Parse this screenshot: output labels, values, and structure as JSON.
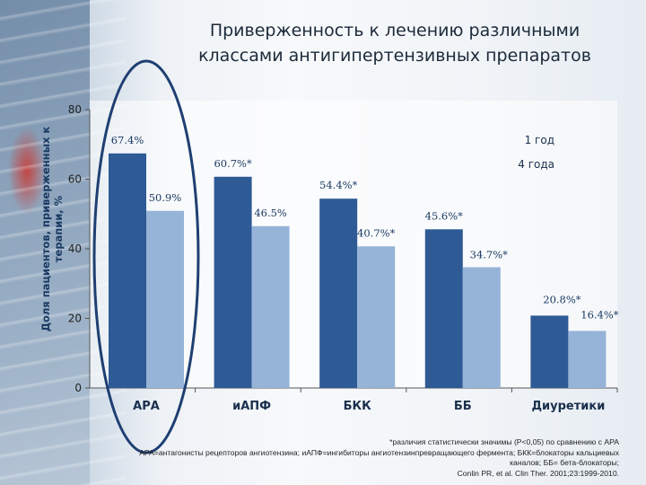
{
  "title_lines": [
    "Приверженность к лечению различными",
    "классами антигипертензивных препаратов"
  ],
  "footnote_lines": [
    "*различия статистически значимы (P<0,05) по сравнению с АРА",
    "АРА=антагонисты рецепторов ангиотензина; иАПФ=ингибиторы ангиотензинпревращающего фермента; БКК=блокаторы кальциевых",
    "каналов; ББ= бета-блокаторы;",
    "Conlin PR, et al. Clin Ther. 2001;23:1999-2010."
  ],
  "colors": {
    "series1": "#2e5a96",
    "series2": "#96b3d8",
    "highlight_oval": "#1f3f72"
  },
  "chart_data": {
    "type": "bar",
    "categories": [
      "АРА",
      "иАПФ",
      "БКК",
      "ББ",
      "Диуретики"
    ],
    "series": [
      {
        "name": "1 год",
        "values": [
          67.4,
          60.7,
          54.4,
          45.6,
          20.8
        ],
        "labels": [
          "67.4%",
          "60.7%*",
          "54.4%*",
          "45.6%*",
          "20.8%*"
        ]
      },
      {
        "name": "4 года",
        "values": [
          50.9,
          46.5,
          40.7,
          34.7,
          16.4
        ],
        "labels": [
          "50.9%",
          "46.5%",
          "40.7%*",
          "34.7%*",
          "16.4%*"
        ]
      }
    ],
    "ylabel": "Доля пациентов, приверженных к терапии, %",
    "ylim": [
      0,
      80
    ],
    "yticks": [
      0,
      20,
      40,
      60,
      80
    ],
    "grid": false,
    "legend_position": "top-right",
    "highlight": "АРА"
  }
}
